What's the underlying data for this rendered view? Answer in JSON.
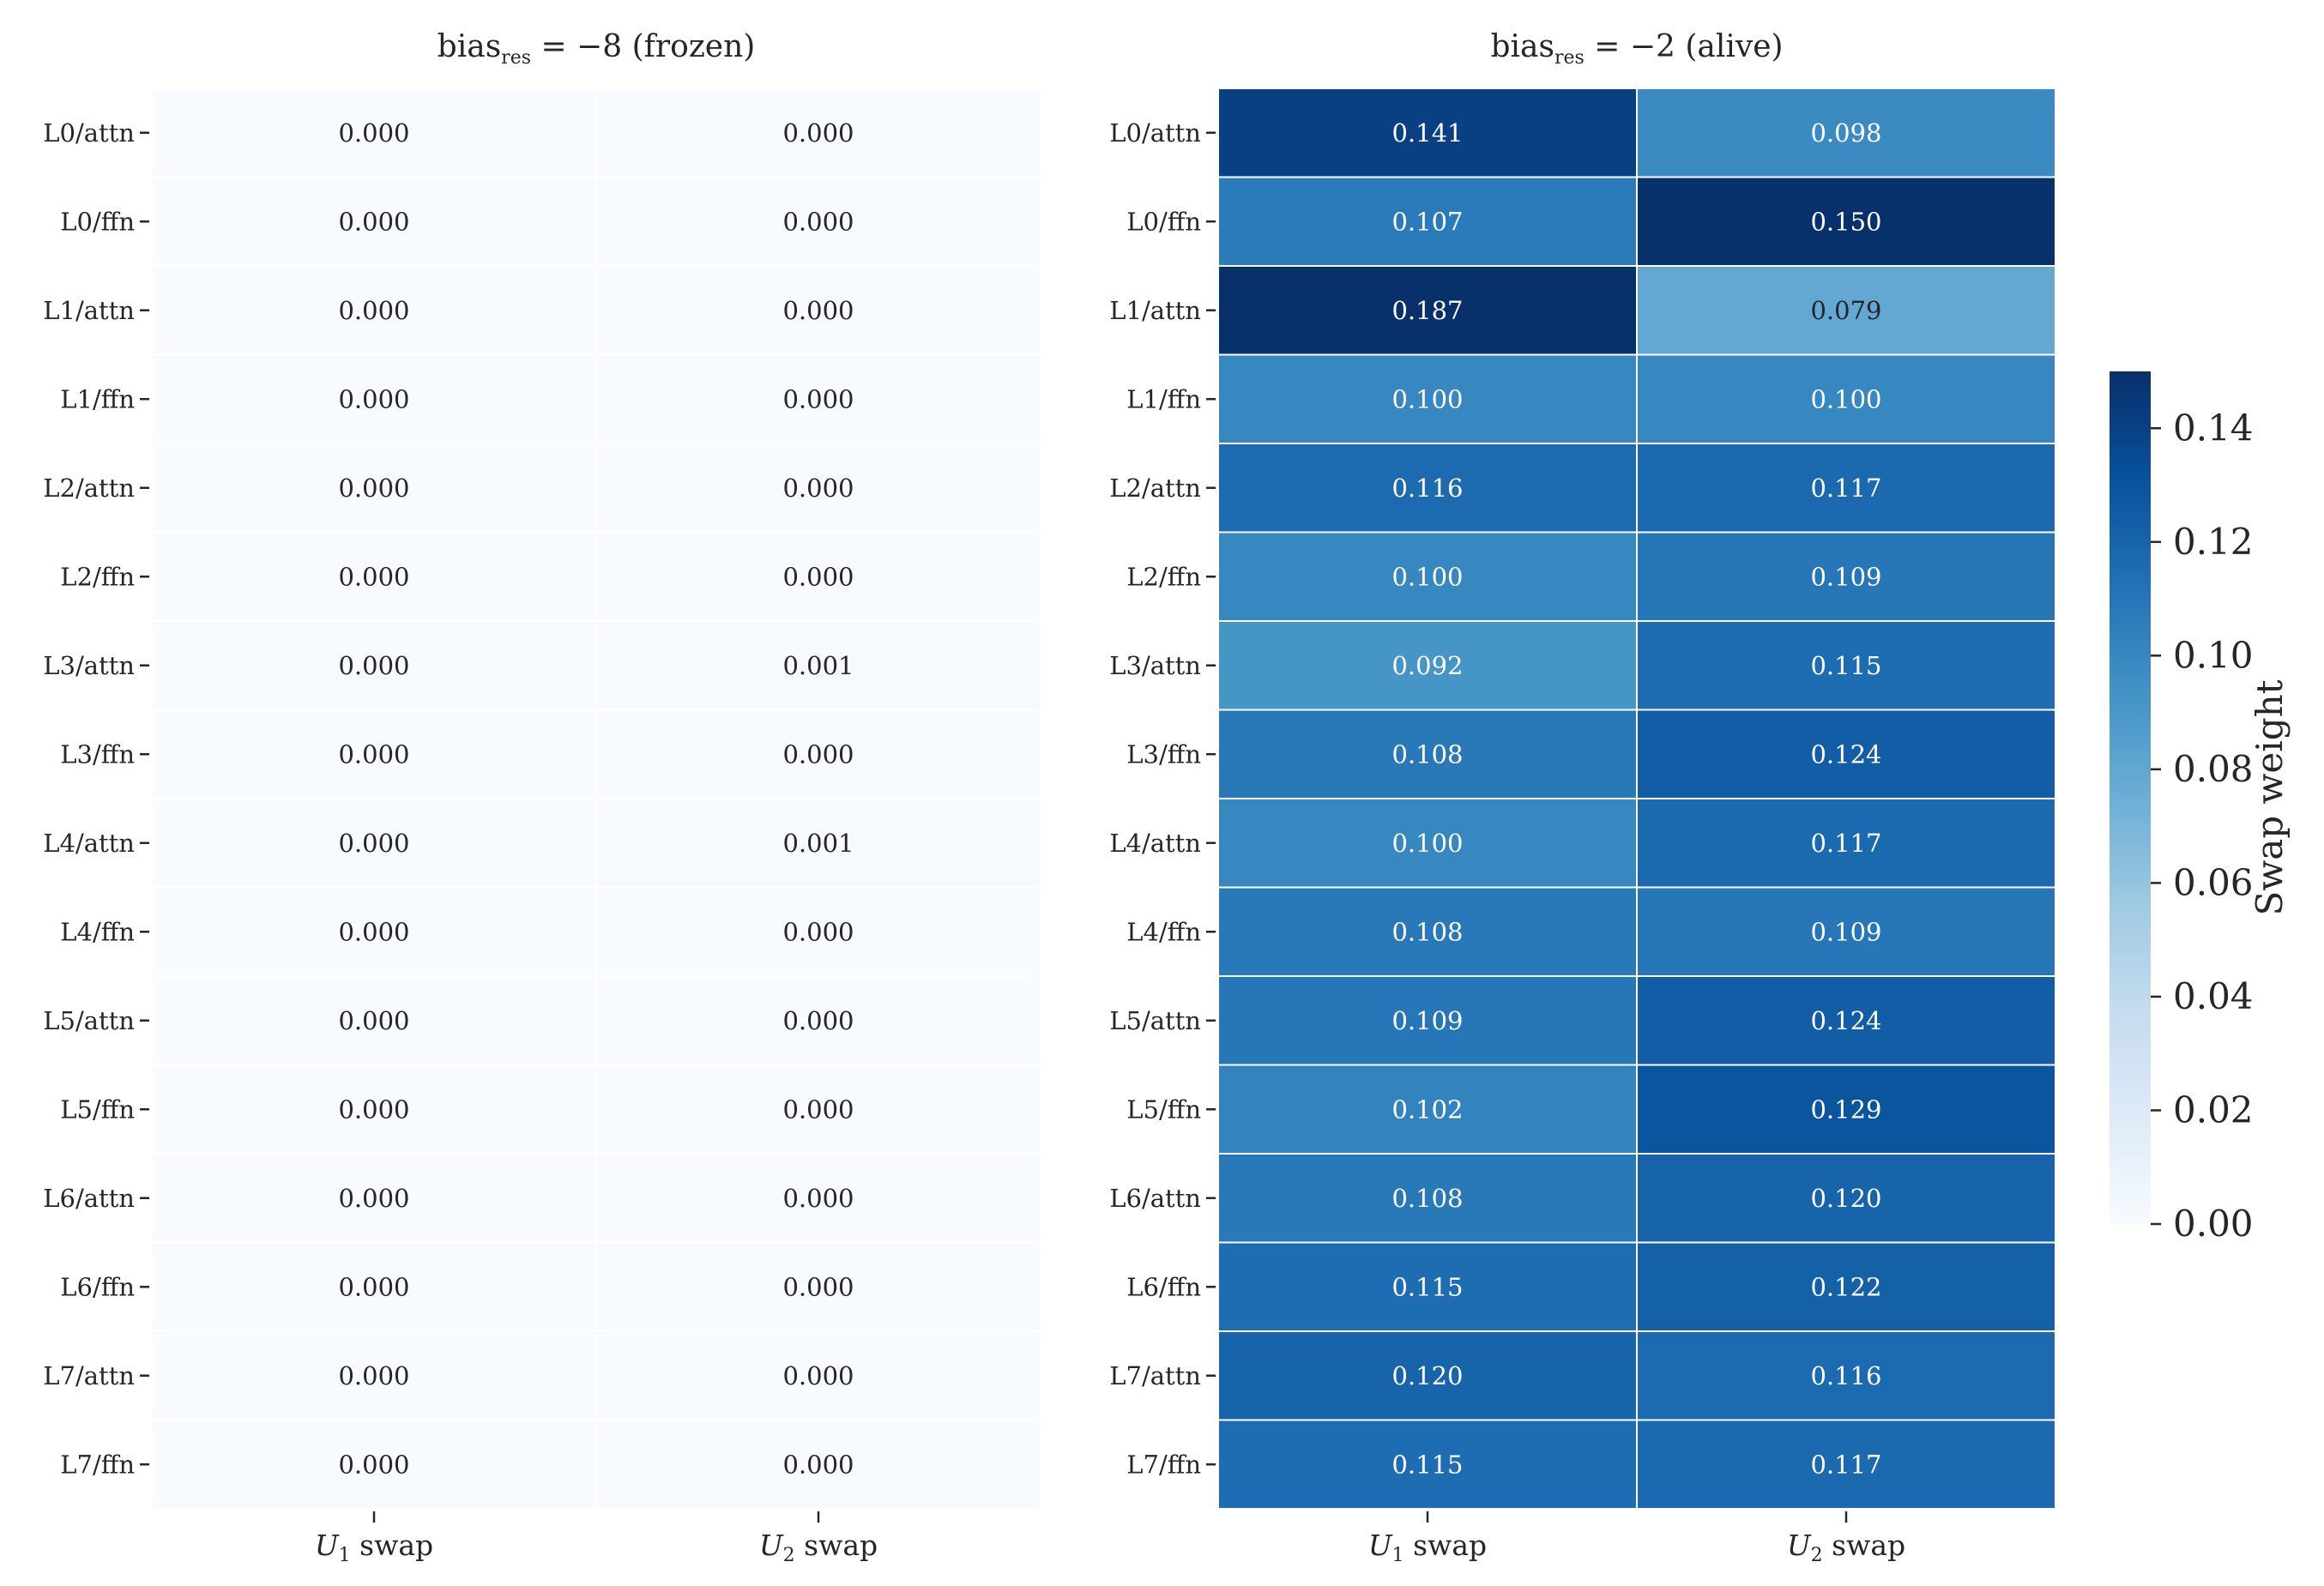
{
  "chart_data": [
    {
      "type": "heatmap",
      "title": {
        "base": "bias",
        "sub": "res",
        "rest": " = −8 (frozen)"
      },
      "rows": [
        "L0/attn",
        "L0/ffn",
        "L1/attn",
        "L1/ffn",
        "L2/attn",
        "L2/ffn",
        "L3/attn",
        "L3/ffn",
        "L4/attn",
        "L4/ffn",
        "L5/attn",
        "L5/ffn",
        "L6/attn",
        "L6/ffn",
        "L7/attn",
        "L7/ffn"
      ],
      "columns": [
        {
          "var": "U",
          "sub": "1",
          "rest": " swap"
        },
        {
          "var": "U",
          "sub": "2",
          "rest": " swap"
        }
      ],
      "values": [
        [
          0.0,
          0.0
        ],
        [
          0.0,
          0.0
        ],
        [
          0.0,
          0.0
        ],
        [
          0.0,
          0.0
        ],
        [
          0.0,
          0.0
        ],
        [
          0.0,
          0.0
        ],
        [
          0.0,
          0.001
        ],
        [
          0.0,
          0.0
        ],
        [
          0.0,
          0.001
        ],
        [
          0.0,
          0.0
        ],
        [
          0.0,
          0.0
        ],
        [
          0.0,
          0.0
        ],
        [
          0.0,
          0.0
        ],
        [
          0.0,
          0.0
        ],
        [
          0.0,
          0.0
        ],
        [
          0.0,
          0.0
        ]
      ],
      "value_format": "0.000"
    },
    {
      "type": "heatmap",
      "title": {
        "base": "bias",
        "sub": "res",
        "rest": " = −2 (alive)"
      },
      "rows": [
        "L0/attn",
        "L0/ffn",
        "L1/attn",
        "L1/ffn",
        "L2/attn",
        "L2/ffn",
        "L3/attn",
        "L3/ffn",
        "L4/attn",
        "L4/ffn",
        "L5/attn",
        "L5/ffn",
        "L6/attn",
        "L6/ffn",
        "L7/attn",
        "L7/ffn"
      ],
      "columns": [
        {
          "var": "U",
          "sub": "1",
          "rest": " swap"
        },
        {
          "var": "U",
          "sub": "2",
          "rest": " swap"
        }
      ],
      "values": [
        [
          0.141,
          0.098
        ],
        [
          0.107,
          0.15
        ],
        [
          0.187,
          0.079
        ],
        [
          0.1,
          0.1
        ],
        [
          0.116,
          0.117
        ],
        [
          0.1,
          0.109
        ],
        [
          0.092,
          0.115
        ],
        [
          0.108,
          0.124
        ],
        [
          0.1,
          0.117
        ],
        [
          0.108,
          0.109
        ],
        [
          0.109,
          0.124
        ],
        [
          0.102,
          0.129
        ],
        [
          0.108,
          0.12
        ],
        [
          0.115,
          0.122
        ],
        [
          0.12,
          0.116
        ],
        [
          0.115,
          0.117
        ]
      ],
      "value_format": "0.000"
    }
  ],
  "colorbar": {
    "label": "Swap weight",
    "colormap": "Blues",
    "range": [
      0.0,
      0.15
    ],
    "ticks": [
      "0.00",
      "0.02",
      "0.04",
      "0.06",
      "0.08",
      "0.10",
      "0.12",
      "0.14"
    ]
  }
}
